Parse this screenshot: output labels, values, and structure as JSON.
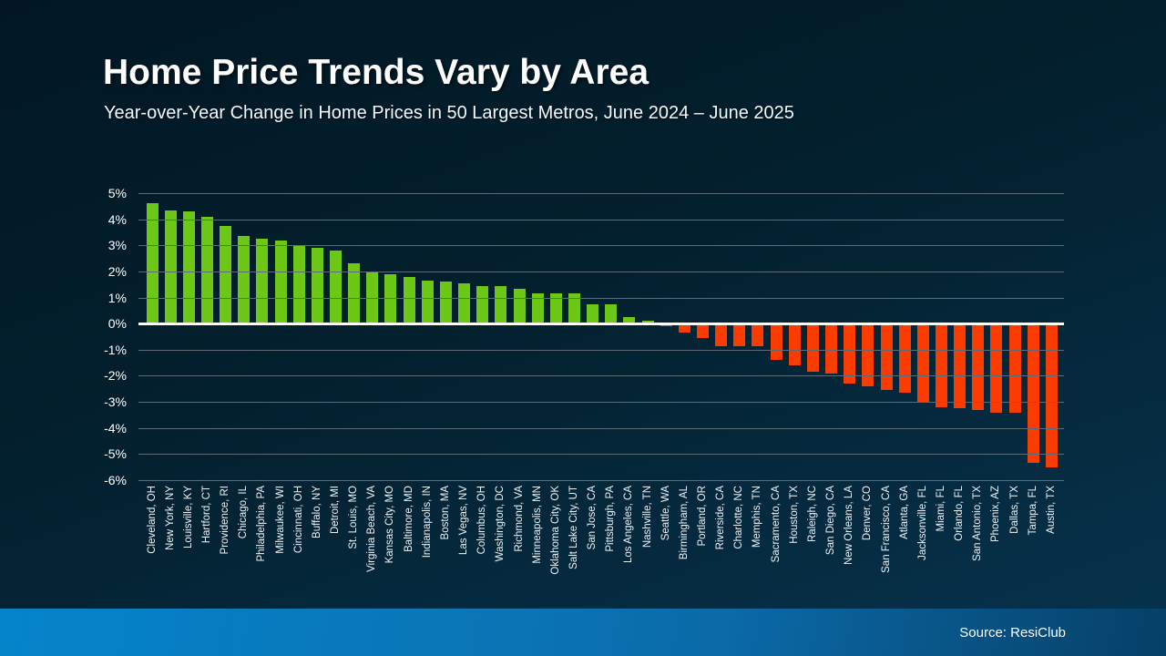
{
  "slide": {
    "title": "Home Price Trends Vary by Area",
    "subtitle": "Year-over-Year Change in Home Prices in 50 Largest Metros, June 2024 – June 2025",
    "source": "Source: ResiClub"
  },
  "colors": {
    "background_top": "#021723",
    "background_bottom": "#07334e",
    "positive_bar": "#6cc717",
    "negative_bar": "#fa3c00",
    "gridline": "#5c6b75",
    "zero_line": "#ffffff",
    "axis_text": "#ffffff",
    "footer_gradient_left": "#0584cb",
    "footer_gradient_right": "#064067"
  },
  "chart_data": {
    "type": "bar",
    "title": "Year-over-Year Change in Home Prices in 50 Largest Metros, June 2024 – June 2025",
    "xlabel": "",
    "ylabel": "",
    "ylim": [
      -6,
      5
    ],
    "grid": true,
    "legend": "none",
    "yticks": [
      5,
      4,
      3,
      2,
      1,
      0,
      -1,
      -2,
      -3,
      -4,
      -5,
      -6
    ],
    "ytick_labels": [
      "5%",
      "4%",
      "3%",
      "2%",
      "1%",
      "0%",
      "-1%",
      "-2%",
      "-3%",
      "-4%",
      "-5%",
      "-6%"
    ],
    "categories": [
      "Cleveland, OH",
      "New York, NY",
      "Louisville, KY",
      "Hartford, CT",
      "Providence, RI",
      "Chicago, IL",
      "Philadelphia, PA",
      "Milwaukee, WI",
      "Cincinnati, OH",
      "Buffalo, NY",
      "Detroit, MI",
      "St. Louis, MO",
      "Virginia Beach, VA",
      "Kansas City, MO",
      "Baltimore, MD",
      "Indianapolis, IN",
      "Boston, MA",
      "Las Vegas, NV",
      "Columbus, OH",
      "Washington, DC",
      "Richmond, VA",
      "Minneapolis, MN",
      "Oklahoma City, OK",
      "Salt Lake City, UT",
      "San Jose, CA",
      "Pittsburgh, PA",
      "Los Angeles, CA",
      "Nashville, TN",
      "Seattle, WA",
      "Birmingham, AL",
      "Portland, OR",
      "Riverside, CA",
      "Charlotte, NC",
      "Memphis, TN",
      "Sacramento, CA",
      "Houston, TX",
      "Raleigh, NC",
      "San Diego, CA",
      "New Orleans, LA",
      "Denver, CO",
      "San Francisco, CA",
      "Atlanta, GA",
      "Jacksonville, FL",
      "Miami, FL",
      "Orlando, FL",
      "San Antonio, TX",
      "Phoenix, AZ",
      "Dallas, TX",
      "Tampa, FL",
      "Austin, TX"
    ],
    "values": [
      4.6,
      4.35,
      4.3,
      4.1,
      3.75,
      3.35,
      3.25,
      3.2,
      3.0,
      2.9,
      2.8,
      2.3,
      2.0,
      1.9,
      1.8,
      1.65,
      1.6,
      1.55,
      1.45,
      1.45,
      1.35,
      1.15,
      1.15,
      1.15,
      0.75,
      0.75,
      0.25,
      0.1,
      -0.1,
      -0.35,
      -0.55,
      -0.85,
      -0.85,
      -0.85,
      -1.4,
      -1.6,
      -1.85,
      -1.9,
      -2.3,
      -2.4,
      -2.55,
      -2.65,
      -3.0,
      -3.2,
      -3.25,
      -3.3,
      -3.4,
      -3.4,
      -5.35,
      -5.5
    ]
  }
}
